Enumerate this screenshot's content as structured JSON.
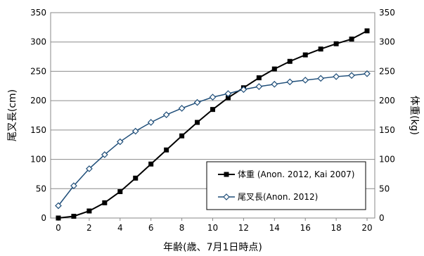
{
  "chart_data": {
    "type": "line",
    "title": "",
    "xlabel": "年齢(歳、7月1日時点)",
    "ylabel_left": "尾叉長(cm)",
    "ylabel_right": "体重(kg)",
    "x": [
      0,
      1,
      2,
      3,
      4,
      5,
      6,
      7,
      8,
      9,
      10,
      11,
      12,
      13,
      14,
      15,
      16,
      17,
      18,
      19,
      20
    ],
    "x_ticks": [
      0,
      2,
      4,
      6,
      8,
      10,
      12,
      14,
      16,
      18,
      20
    ],
    "xlim": [
      -0.5,
      20.5
    ],
    "ylim_left": [
      0,
      350
    ],
    "ylim_right": [
      0,
      350
    ],
    "y_ticks": [
      0,
      50,
      100,
      150,
      200,
      250,
      300,
      350
    ],
    "grid": "horizontal",
    "legend_position": "bottom-right",
    "series": [
      {
        "name": "体重 (Anon. 2012, Kai 2007)",
        "axis": "right",
        "marker": "square",
        "color": "#000000",
        "values": [
          0,
          3,
          12,
          26,
          45,
          68,
          92,
          116,
          140,
          163,
          185,
          205,
          222,
          239,
          254,
          267,
          278,
          288,
          297,
          305,
          319
        ]
      },
      {
        "name": "尾叉長(Anon. 2012)",
        "axis": "left",
        "marker": "diamond",
        "color": "#1f4e79",
        "values": [
          21,
          55,
          84,
          108,
          130,
          148,
          163,
          176,
          187,
          197,
          206,
          212,
          219,
          224,
          228,
          232,
          235,
          238,
          241,
          243,
          246
        ]
      }
    ]
  }
}
